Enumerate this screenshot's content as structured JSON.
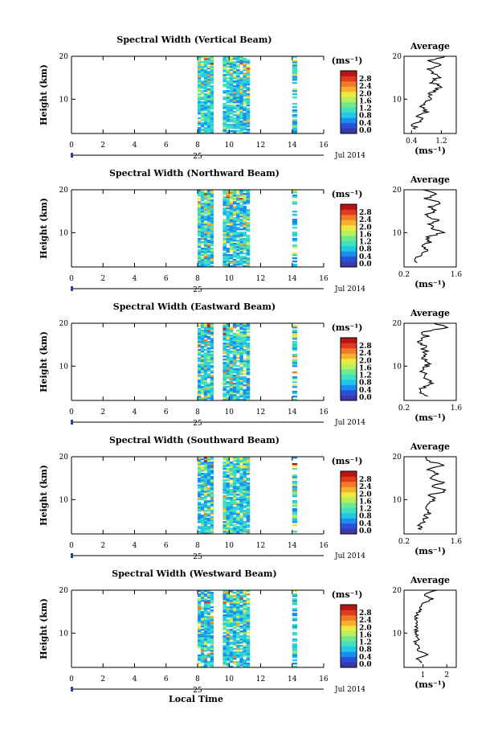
{
  "figure": {
    "xlabel": "Local Time",
    "ylabel": "Height (km)",
    "day_label": "25",
    "month_label": "Jul 2014",
    "colorbar_unit": "(ms⁻¹)",
    "average_title": "Average",
    "average_unit": "(ms⁻¹)",
    "colorbar_ticks": [
      "0.0",
      "0.4",
      "0.8",
      "1.2",
      "1.6",
      "2.0",
      "2.4",
      "2.8"
    ],
    "palette": [
      "#3b3aa8",
      "#2a4fd8",
      "#1a8ef0",
      "#22c7e8",
      "#41e0c0",
      "#6fe890",
      "#b6f060",
      "#ecea40",
      "#f8b030",
      "#f07a28",
      "#e23a1e",
      "#b81416"
    ]
  },
  "chart_data": [
    {
      "type": "heatmap",
      "title": "Spectral Width (Vertical Beam)",
      "x_ticks": [
        "0",
        "2",
        "4",
        "6",
        "8",
        "10",
        "12",
        "14",
        "16"
      ],
      "xlim": [
        0,
        16
      ],
      "y_ticks": [
        "20",
        "10"
      ],
      "ylim": [
        2,
        20
      ],
      "clim": [
        0.0,
        3.0
      ],
      "data_columns": [
        [
          8.0,
          9.0
        ],
        [
          9.6,
          11.3
        ],
        [
          14.0,
          14.3
        ]
      ],
      "average": {
        "x_ticks": [
          "0.4",
          "1.2"
        ],
        "xlim": [
          0.2,
          1.6
        ],
        "y_ticks": [
          "20",
          "10"
        ],
        "height": [
          3,
          4,
          5,
          6,
          7,
          8,
          9,
          10,
          11,
          12,
          13,
          14,
          15,
          16,
          17,
          18,
          19,
          20
        ],
        "value": [
          0.55,
          0.45,
          0.7,
          0.6,
          0.8,
          0.7,
          0.75,
          0.85,
          0.9,
          1.0,
          1.2,
          0.9,
          1.1,
          1.0,
          0.8,
          1.2,
          0.9,
          1.3
        ]
      }
    },
    {
      "type": "heatmap",
      "title": "Spectral Width (Northward Beam)",
      "x_ticks": [
        "0",
        "2",
        "4",
        "6",
        "8",
        "10",
        "12",
        "14",
        "16"
      ],
      "xlim": [
        0,
        16
      ],
      "y_ticks": [
        "20",
        "10"
      ],
      "ylim": [
        2,
        20
      ],
      "clim": [
        0.0,
        3.0
      ],
      "data_columns": [
        [
          8.0,
          9.0
        ],
        [
          9.6,
          11.3
        ],
        [
          14.0,
          14.3
        ]
      ],
      "average": {
        "x_ticks": [
          "0.2",
          "1.6"
        ],
        "xlim": [
          0.2,
          1.6
        ],
        "y_ticks": [
          "20",
          "10"
        ],
        "height": [
          3,
          4,
          5,
          6,
          7,
          8,
          9,
          10,
          11,
          12,
          13,
          14,
          15,
          16,
          17,
          18,
          19,
          20
        ],
        "value": [
          0.6,
          0.5,
          0.7,
          0.8,
          0.75,
          0.9,
          0.8,
          1.2,
          1.0,
          0.9,
          1.1,
          0.8,
          1.0,
          0.9,
          1.2,
          0.8,
          1.0,
          0.7
        ]
      }
    },
    {
      "type": "heatmap",
      "title": "Spectral Width (Eastward Beam)",
      "x_ticks": [
        "0",
        "2",
        "4",
        "6",
        "8",
        "10",
        "12",
        "14",
        "16"
      ],
      "xlim": [
        0,
        16
      ],
      "y_ticks": [
        "20",
        "10"
      ],
      "ylim": [
        2,
        20
      ],
      "clim": [
        0.0,
        3.0
      ],
      "data_columns": [
        [
          8.0,
          9.0
        ],
        [
          9.6,
          11.3
        ],
        [
          14.0,
          14.3
        ]
      ],
      "average": {
        "x_ticks": [
          "0.2",
          "1.6"
        ],
        "xlim": [
          0.2,
          1.6
        ],
        "y_ticks": [
          "20",
          "10"
        ],
        "height": [
          3,
          4,
          5,
          6,
          7,
          8,
          9,
          10,
          11,
          12,
          13,
          14,
          15,
          16,
          17,
          18,
          19,
          20
        ],
        "value": [
          0.8,
          0.6,
          0.7,
          0.9,
          0.8,
          0.75,
          0.7,
          0.8,
          0.85,
          0.7,
          0.8,
          0.75,
          0.7,
          0.6,
          0.8,
          0.7,
          1.4,
          1.0
        ]
      }
    },
    {
      "type": "heatmap",
      "title": "Spectral Width (Southward Beam)",
      "x_ticks": [
        "0",
        "2",
        "4",
        "6",
        "8",
        "10",
        "12",
        "14",
        "16"
      ],
      "xlim": [
        0,
        16
      ],
      "y_ticks": [
        "20",
        "10"
      ],
      "ylim": [
        2,
        20
      ],
      "clim": [
        0.0,
        3.0
      ],
      "data_columns": [
        [
          8.0,
          9.0
        ],
        [
          9.6,
          11.3
        ],
        [
          14.0,
          14.3
        ]
      ],
      "average": {
        "x_ticks": [
          "0.2",
          "1.6"
        ],
        "xlim": [
          0.2,
          1.6
        ],
        "y_ticks": [
          "20",
          "10"
        ],
        "height": [
          3,
          4,
          5,
          6,
          7,
          8,
          9,
          10,
          11,
          12,
          13,
          14,
          15,
          16,
          17,
          18,
          19,
          20
        ],
        "value": [
          0.7,
          0.6,
          0.8,
          0.75,
          0.9,
          0.8,
          0.85,
          1.0,
          0.9,
          1.3,
          1.0,
          1.2,
          0.9,
          1.1,
          0.8,
          1.2,
          0.9,
          0.8
        ]
      }
    },
    {
      "type": "heatmap",
      "title": "Spectral Width (Westward Beam)",
      "x_ticks": [
        "0",
        "2",
        "4",
        "6",
        "8",
        "10",
        "12",
        "14",
        "16"
      ],
      "xlim": [
        0,
        16
      ],
      "y_ticks": [
        "20",
        "10"
      ],
      "ylim": [
        2,
        20
      ],
      "clim": [
        0.0,
        3.0
      ],
      "data_columns": [
        [
          8.0,
          9.0
        ],
        [
          9.6,
          11.3
        ],
        [
          14.0,
          14.3
        ]
      ],
      "average": {
        "x_ticks": [
          "1",
          "2"
        ],
        "xlim": [
          0.2,
          2.4
        ],
        "y_ticks": [
          "20",
          "10"
        ],
        "height": [
          3,
          4,
          5,
          6,
          7,
          8,
          9,
          10,
          11,
          12,
          13,
          14,
          15,
          16,
          17,
          18,
          19,
          20
        ],
        "value": [
          0.9,
          0.7,
          1.2,
          0.8,
          0.75,
          0.7,
          0.8,
          0.75,
          0.7,
          0.8,
          0.75,
          0.7,
          0.8,
          0.9,
          1.0,
          1.4,
          1.0,
          1.6
        ]
      }
    }
  ]
}
